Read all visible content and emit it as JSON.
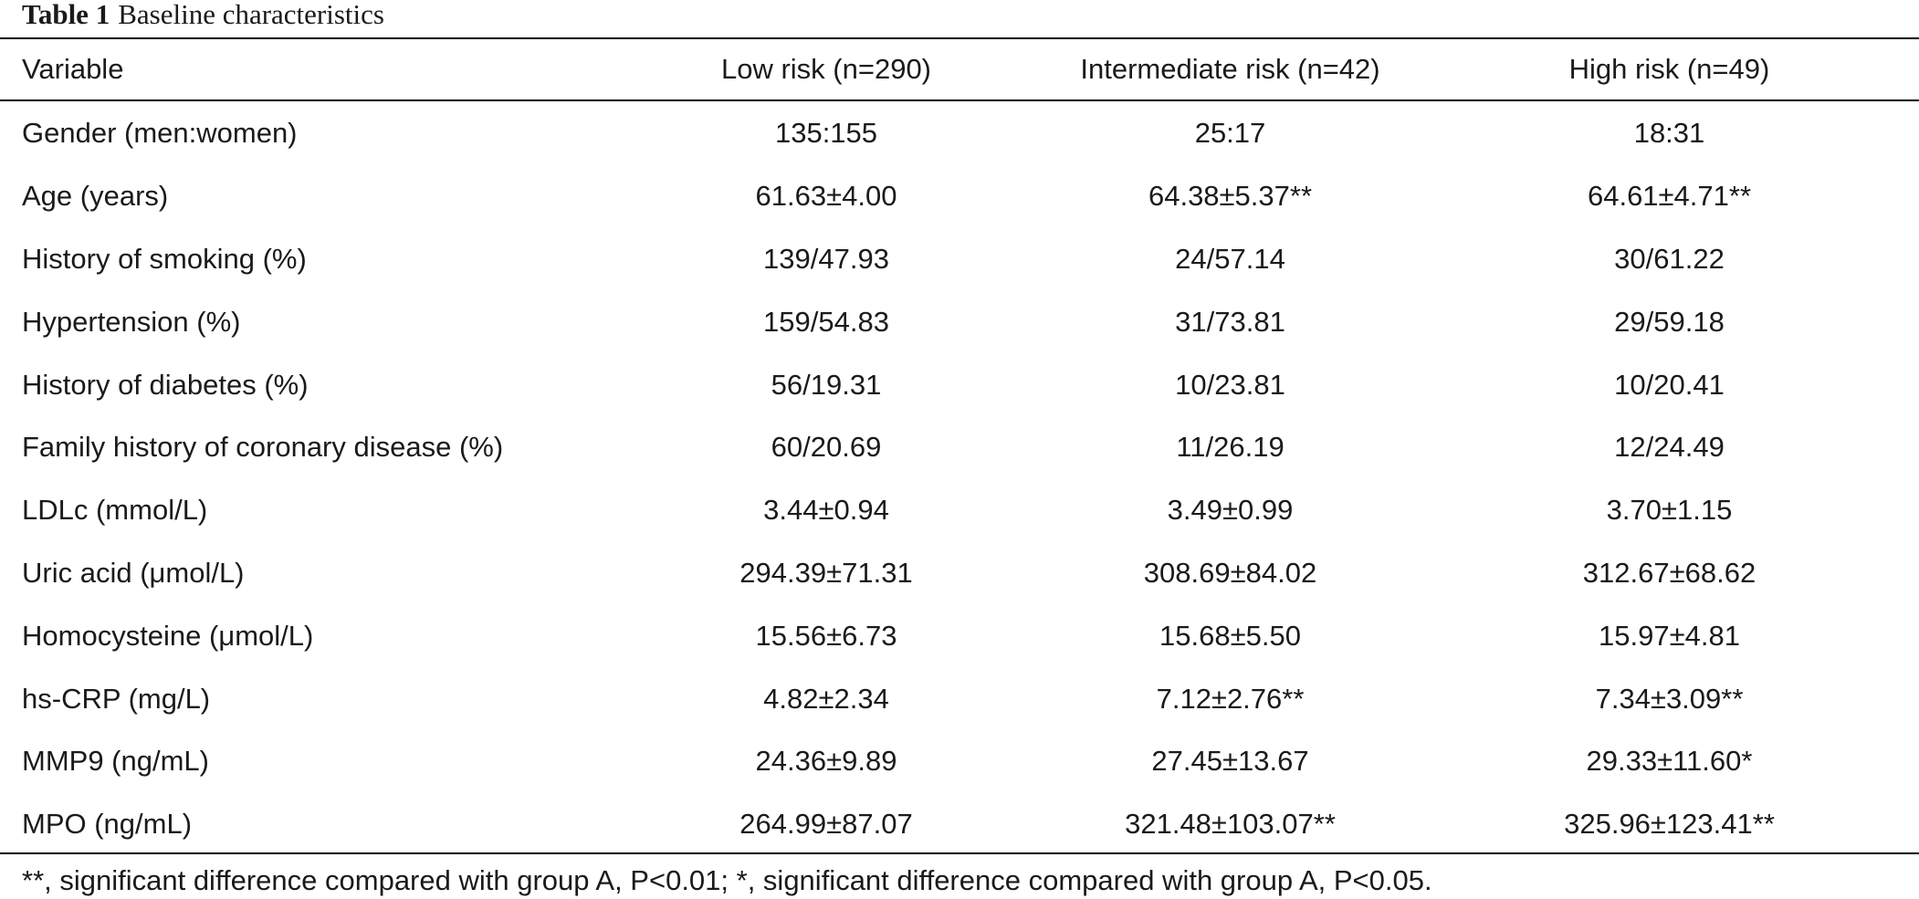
{
  "caption": {
    "label": "Table 1",
    "title": "Baseline characteristics"
  },
  "table": {
    "columns": [
      "Variable",
      "Low risk (n=290)",
      "Intermediate risk (n=42)",
      "High risk (n=49)"
    ],
    "rows": [
      [
        "Gender (men:women)",
        "135:155",
        "25:17",
        "18:31"
      ],
      [
        "Age (years)",
        "61.63±4.00",
        "64.38±5.37**",
        "64.61±4.71**"
      ],
      [
        "History of smoking (%)",
        "139/47.93",
        "24/57.14",
        "30/61.22"
      ],
      [
        "Hypertension (%)",
        "159/54.83",
        "31/73.81",
        "29/59.18"
      ],
      [
        "History of diabetes (%)",
        "56/19.31",
        "10/23.81",
        "10/20.41"
      ],
      [
        "Family history of coronary disease (%)",
        "60/20.69",
        "11/26.19",
        "12/24.49"
      ],
      [
        "LDLc (mmol/L)",
        "3.44±0.94",
        "3.49±0.99",
        "3.70±1.15"
      ],
      [
        "Uric acid (μmol/L)",
        "294.39±71.31",
        "308.69±84.02",
        "312.67±68.62"
      ],
      [
        "Homocysteine (μmol/L)",
        "15.56±6.73",
        "15.68±5.50",
        "15.97±4.81"
      ],
      [
        "hs-CRP (mg/L)",
        "4.82±2.34",
        "7.12±2.76**",
        "7.34±3.09**"
      ],
      [
        "MMP9 (ng/mL)",
        "24.36±9.89",
        "27.45±13.67",
        "29.33±11.60*"
      ],
      [
        "MPO (ng/mL)",
        "264.99±87.07",
        "321.48±103.07**",
        "325.96±123.41**"
      ]
    ]
  },
  "footnote": "**, significant difference compared with group A, P<0.01; *, significant difference compared with group A, P<0.05."
}
